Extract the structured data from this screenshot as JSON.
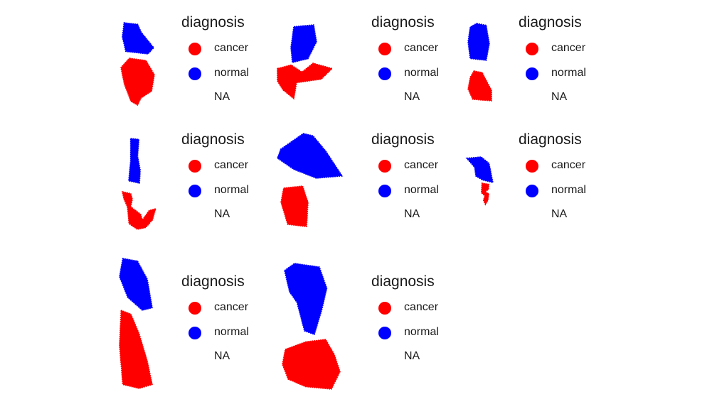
{
  "colors": {
    "cancer": "#ff0000",
    "normal": "#0000ff"
  },
  "chart_data": [
    {
      "type": "scatter",
      "legend": {
        "title": "diagnosis",
        "position": "right",
        "keys": [
          "cancer",
          "normal",
          "NA"
        ]
      },
      "regions": [
        {
          "class": "normal",
          "shape": [
            [
              0.05,
              0.0
            ],
            [
              0.45,
              0.05
            ],
            [
              0.55,
              0.3
            ],
            [
              0.92,
              0.8
            ],
            [
              0.75,
              1.0
            ],
            [
              0.1,
              0.92
            ],
            [
              0.0,
              0.45
            ]
          ]
        },
        {
          "class": "cancer",
          "shape": [
            [
              0.25,
              0.0
            ],
            [
              0.75,
              0.05
            ],
            [
              1.0,
              0.35
            ],
            [
              0.92,
              0.7
            ],
            [
              0.6,
              0.85
            ],
            [
              0.5,
              1.0
            ],
            [
              0.3,
              0.92
            ],
            [
              0.1,
              0.55
            ],
            [
              0.0,
              0.2
            ]
          ]
        }
      ]
    },
    {
      "type": "scatter",
      "legend": {
        "title": "diagnosis",
        "position": "right",
        "keys": [
          "cancer",
          "normal",
          "NA"
        ]
      },
      "regions": [
        {
          "class": "normal",
          "shape": [
            [
              0.1,
              0.05
            ],
            [
              0.8,
              0.0
            ],
            [
              0.9,
              0.45
            ],
            [
              0.6,
              0.9
            ],
            [
              0.05,
              1.0
            ],
            [
              0.0,
              0.6
            ]
          ]
        },
        {
          "class": "cancer",
          "shape": [
            [
              0.0,
              0.15
            ],
            [
              0.25,
              0.05
            ],
            [
              0.45,
              0.25
            ],
            [
              0.65,
              0.0
            ],
            [
              1.0,
              0.15
            ],
            [
              0.8,
              0.45
            ],
            [
              0.35,
              0.55
            ],
            [
              0.3,
              1.0
            ],
            [
              0.1,
              0.75
            ],
            [
              0.0,
              0.5
            ]
          ]
        }
      ]
    },
    {
      "type": "scatter",
      "legend": {
        "title": "diagnosis",
        "position": "right",
        "keys": [
          "cancer",
          "normal",
          "NA"
        ]
      },
      "regions": [
        {
          "class": "normal",
          "shape": [
            [
              0.4,
              0.0
            ],
            [
              0.85,
              0.05
            ],
            [
              1.0,
              0.55
            ],
            [
              0.85,
              1.0
            ],
            [
              0.1,
              0.95
            ],
            [
              0.0,
              0.5
            ],
            [
              0.1,
              0.1
            ]
          ]
        },
        {
          "class": "cancer",
          "shape": [
            [
              0.25,
              0.0
            ],
            [
              0.6,
              0.05
            ],
            [
              0.8,
              0.35
            ],
            [
              1.0,
              0.65
            ],
            [
              1.0,
              1.0
            ],
            [
              0.2,
              0.95
            ],
            [
              0.0,
              0.6
            ],
            [
              0.1,
              0.2
            ]
          ]
        }
      ]
    },
    {
      "type": "scatter",
      "legend": {
        "title": "diagnosis",
        "position": "right",
        "keys": [
          "cancer",
          "normal",
          "NA"
        ]
      },
      "regions": [
        {
          "class": "normal",
          "shape": [
            [
              0.2,
              0.0
            ],
            [
              0.85,
              0.02
            ],
            [
              0.75,
              0.4
            ],
            [
              0.95,
              0.7
            ],
            [
              0.9,
              1.0
            ],
            [
              0.05,
              0.95
            ],
            [
              0.2,
              0.5
            ]
          ]
        },
        {
          "class": "cancer",
          "shape": [
            [
              0.0,
              0.0
            ],
            [
              0.25,
              0.05
            ],
            [
              0.3,
              0.2
            ],
            [
              0.25,
              0.4
            ],
            [
              0.55,
              0.6
            ],
            [
              0.6,
              0.75
            ],
            [
              0.8,
              0.5
            ],
            [
              1.0,
              0.45
            ],
            [
              0.9,
              0.75
            ],
            [
              0.7,
              0.95
            ],
            [
              0.45,
              1.0
            ],
            [
              0.2,
              0.85
            ],
            [
              0.15,
              0.4
            ],
            [
              0.05,
              0.2
            ]
          ]
        }
      ]
    },
    {
      "type": "scatter",
      "legend": {
        "title": "diagnosis",
        "position": "right",
        "keys": [
          "cancer",
          "normal",
          "NA"
        ]
      },
      "regions": [
        {
          "class": "normal",
          "shape": [
            [
              0.4,
              0.0
            ],
            [
              0.55,
              0.05
            ],
            [
              0.75,
              0.4
            ],
            [
              1.0,
              0.95
            ],
            [
              0.6,
              1.0
            ],
            [
              0.25,
              0.8
            ],
            [
              0.0,
              0.55
            ],
            [
              0.05,
              0.35
            ]
          ]
        },
        {
          "class": "cancer",
          "shape": [
            [
              0.1,
              0.05
            ],
            [
              0.8,
              0.0
            ],
            [
              1.0,
              0.4
            ],
            [
              0.95,
              1.0
            ],
            [
              0.25,
              0.95
            ],
            [
              0.0,
              0.4
            ]
          ]
        }
      ]
    },
    {
      "type": "scatter",
      "legend": {
        "title": "diagnosis",
        "position": "right",
        "keys": [
          "cancer",
          "normal",
          "NA"
        ]
      },
      "regions": [
        {
          "class": "normal",
          "shape": [
            [
              0.0,
              0.05
            ],
            [
              0.55,
              0.0
            ],
            [
              0.85,
              0.25
            ],
            [
              1.0,
              1.0
            ],
            [
              0.6,
              0.9
            ],
            [
              0.35,
              0.75
            ],
            [
              0.3,
              0.4
            ]
          ]
        },
        {
          "class": "cancer",
          "shape": [
            [
              0.25,
              0.0
            ],
            [
              0.95,
              0.05
            ],
            [
              0.9,
              0.3
            ],
            [
              0.55,
              0.4
            ],
            [
              0.95,
              0.5
            ],
            [
              0.85,
              0.8
            ],
            [
              0.6,
              1.0
            ],
            [
              0.4,
              0.8
            ],
            [
              0.55,
              0.6
            ],
            [
              0.2,
              0.45
            ]
          ]
        }
      ]
    },
    {
      "type": "scatter",
      "legend": {
        "title": "diagnosis",
        "position": "right",
        "keys": [
          "cancer",
          "normal",
          "NA"
        ]
      },
      "regions": [
        {
          "class": "normal",
          "shape": [
            [
              0.1,
              0.0
            ],
            [
              0.55,
              0.05
            ],
            [
              0.85,
              0.4
            ],
            [
              1.0,
              0.95
            ],
            [
              0.7,
              1.0
            ],
            [
              0.25,
              0.75
            ],
            [
              0.0,
              0.35
            ]
          ]
        },
        {
          "class": "cancer",
          "shape": [
            [
              0.05,
              0.0
            ],
            [
              0.35,
              0.05
            ],
            [
              0.6,
              0.3
            ],
            [
              0.85,
              0.65
            ],
            [
              1.0,
              0.95
            ],
            [
              0.6,
              1.0
            ],
            [
              0.1,
              0.95
            ],
            [
              0.0,
              0.45
            ]
          ]
        }
      ]
    },
    {
      "type": "scatter",
      "legend": {
        "title": "diagnosis",
        "position": "right",
        "keys": [
          "cancer",
          "normal",
          "NA"
        ]
      },
      "regions": [
        {
          "class": "normal",
          "shape": [
            [
              0.0,
              0.1
            ],
            [
              0.2,
              0.0
            ],
            [
              0.7,
              0.05
            ],
            [
              0.85,
              0.35
            ],
            [
              0.75,
              0.65
            ],
            [
              0.6,
              1.0
            ],
            [
              0.4,
              0.95
            ],
            [
              0.25,
              0.55
            ],
            [
              0.1,
              0.4
            ]
          ]
        },
        {
          "class": "cancer",
          "shape": [
            [
              0.05,
              0.2
            ],
            [
              0.4,
              0.05
            ],
            [
              0.75,
              0.0
            ],
            [
              0.9,
              0.3
            ],
            [
              1.0,
              0.65
            ],
            [
              0.85,
              1.0
            ],
            [
              0.4,
              0.95
            ],
            [
              0.1,
              0.8
            ],
            [
              0.0,
              0.5
            ]
          ]
        }
      ]
    }
  ]
}
